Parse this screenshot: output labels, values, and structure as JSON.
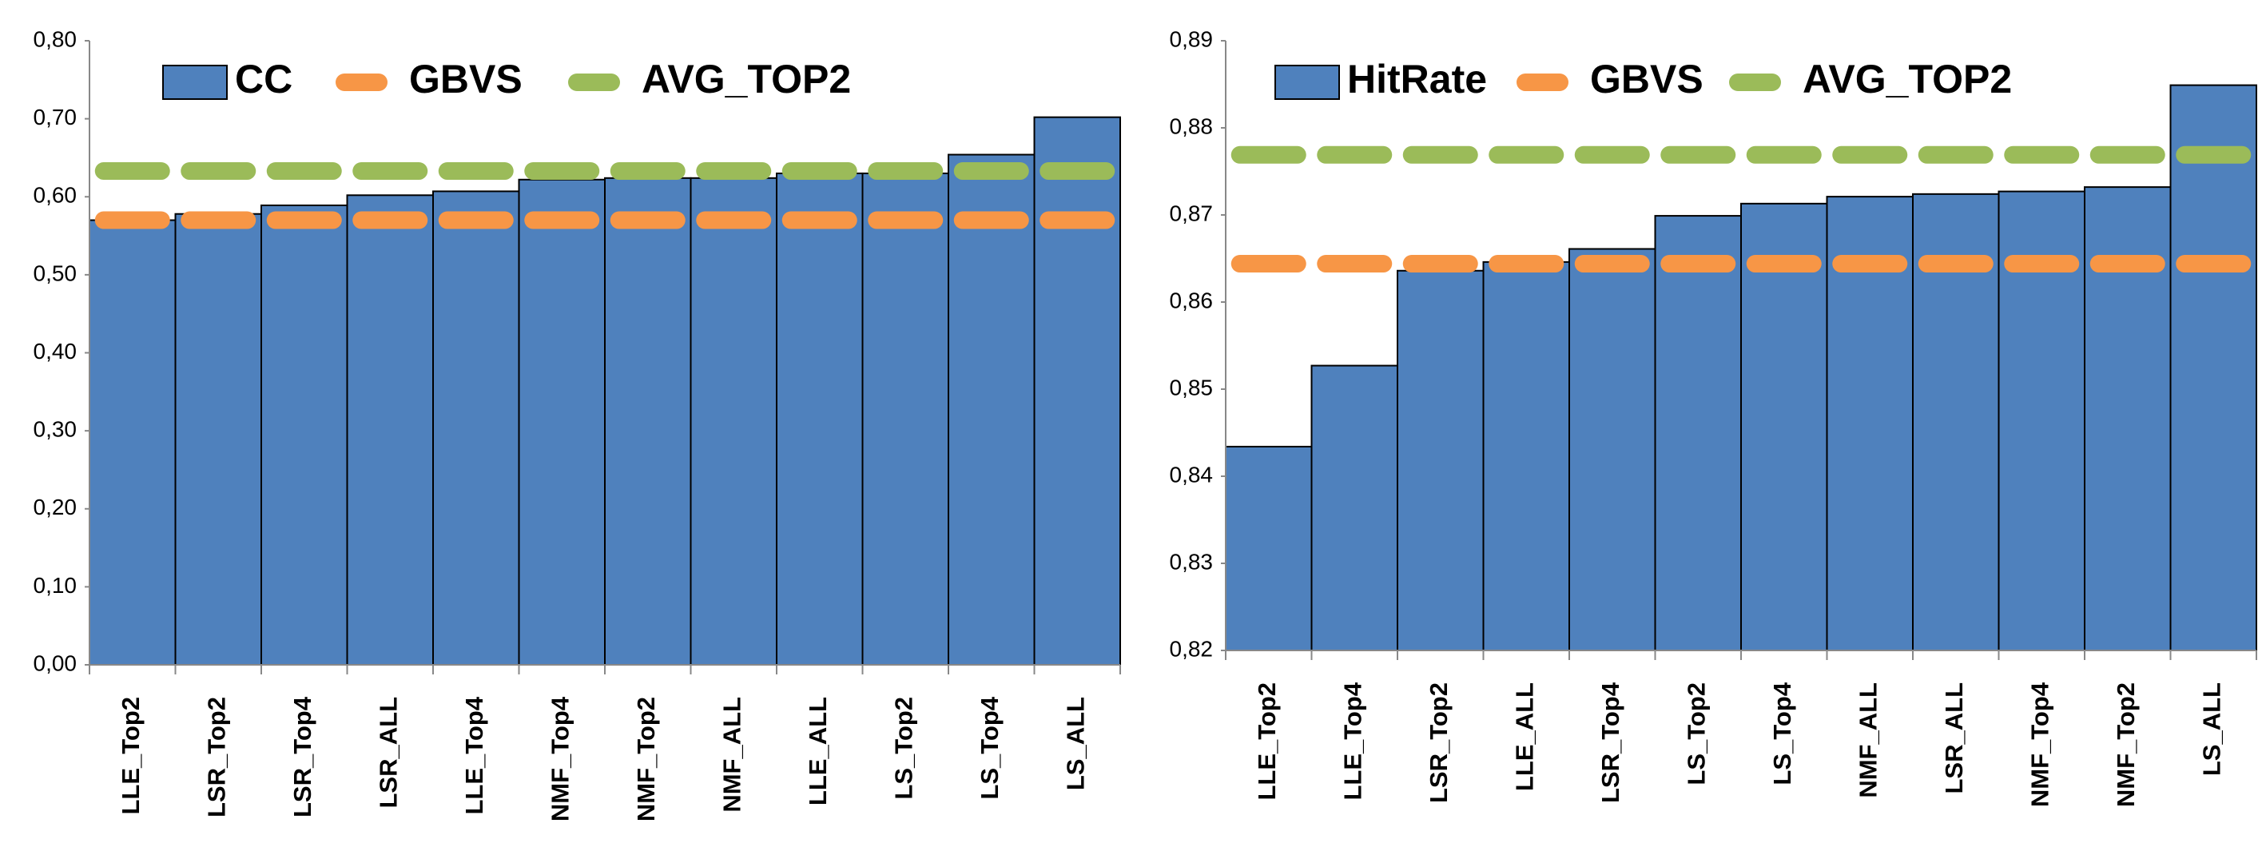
{
  "chart_data": [
    {
      "type": "bar",
      "categories": [
        "LLE_Top2",
        "LSR_Top2",
        "LSR_Top4",
        "LSR_ALL",
        "LLE_Top4",
        "NMF_Top4",
        "NMF_Top2",
        "NMF_ALL",
        "LLE_ALL",
        "LS_Top2",
        "LS_Top4",
        "LS_ALL"
      ],
      "series": [
        {
          "name": "CC",
          "type": "bar",
          "color": "#4f81bd",
          "values": [
            0.57,
            0.578,
            0.589,
            0.602,
            0.607,
            0.622,
            0.624,
            0.624,
            0.63,
            0.63,
            0.654,
            0.702
          ]
        },
        {
          "name": "GBVS",
          "type": "line",
          "color": "#f79646",
          "values": [
            0.57,
            0.57,
            0.57,
            0.57,
            0.57,
            0.57,
            0.57,
            0.57,
            0.57,
            0.57,
            0.57,
            0.57
          ]
        },
        {
          "name": "AVG_TOP2",
          "type": "line",
          "color": "#9bbb59",
          "values": [
            0.633,
            0.633,
            0.633,
            0.633,
            0.633,
            0.633,
            0.633,
            0.633,
            0.633,
            0.633,
            0.633,
            0.633
          ]
        }
      ],
      "ylim": [
        0,
        0.8
      ],
      "yticks": [
        {
          "value": 0,
          "label": "0,00"
        },
        {
          "value": 0.1,
          "label": "0,10"
        },
        {
          "value": 0.2,
          "label": "0,20"
        },
        {
          "value": 0.3,
          "label": "0,30"
        },
        {
          "value": 0.4,
          "label": "0,40"
        },
        {
          "value": 0.5,
          "label": "0,50"
        },
        {
          "value": 0.6,
          "label": "0,60"
        },
        {
          "value": 0.7,
          "label": "0,70"
        },
        {
          "value": 0.8,
          "label": "0,80"
        }
      ],
      "legend": "top-left"
    },
    {
      "type": "bar",
      "categories": [
        "LLE_Top2",
        "LLE_Top4",
        "LSR_Top2",
        "LLE_ALL",
        "LSR_Top4",
        "LS_Top2",
        "LS_Top4",
        "NMF_ALL",
        "LSR_ALL",
        "NMF_Top4",
        "NMF_Top2",
        "LS_ALL"
      ],
      "series": [
        {
          "name": "HitRate",
          "type": "bar",
          "color": "#4f81bd",
          "values": [
            0.8434,
            0.8527,
            0.8636,
            0.8646,
            0.8661,
            0.8699,
            0.8713,
            0.8721,
            0.8724,
            0.8727,
            0.8732,
            0.8849
          ]
        },
        {
          "name": "GBVS",
          "type": "line",
          "color": "#f79646",
          "values": [
            0.8644,
            0.8644,
            0.8644,
            0.8644,
            0.8644,
            0.8644,
            0.8644,
            0.8644,
            0.8644,
            0.8644,
            0.8644,
            0.8644
          ]
        },
        {
          "name": "AVG_TOP2",
          "type": "line",
          "color": "#9bbb59",
          "values": [
            0.8769,
            0.8769,
            0.8769,
            0.8769,
            0.8769,
            0.8769,
            0.8769,
            0.8769,
            0.8769,
            0.8769,
            0.8769,
            0.8769
          ]
        }
      ],
      "ylim": [
        0.82,
        0.89
      ],
      "yticks": [
        {
          "value": 0.82,
          "label": "0,82"
        },
        {
          "value": 0.83,
          "label": "0,83"
        },
        {
          "value": 0.84,
          "label": "0,84"
        },
        {
          "value": 0.85,
          "label": "0,85"
        },
        {
          "value": 0.86,
          "label": "0,86"
        },
        {
          "value": 0.87,
          "label": "0,87"
        },
        {
          "value": 0.88,
          "label": "0,88"
        },
        {
          "value": 0.89,
          "label": "0,89"
        }
      ],
      "legend": "top-left"
    }
  ]
}
